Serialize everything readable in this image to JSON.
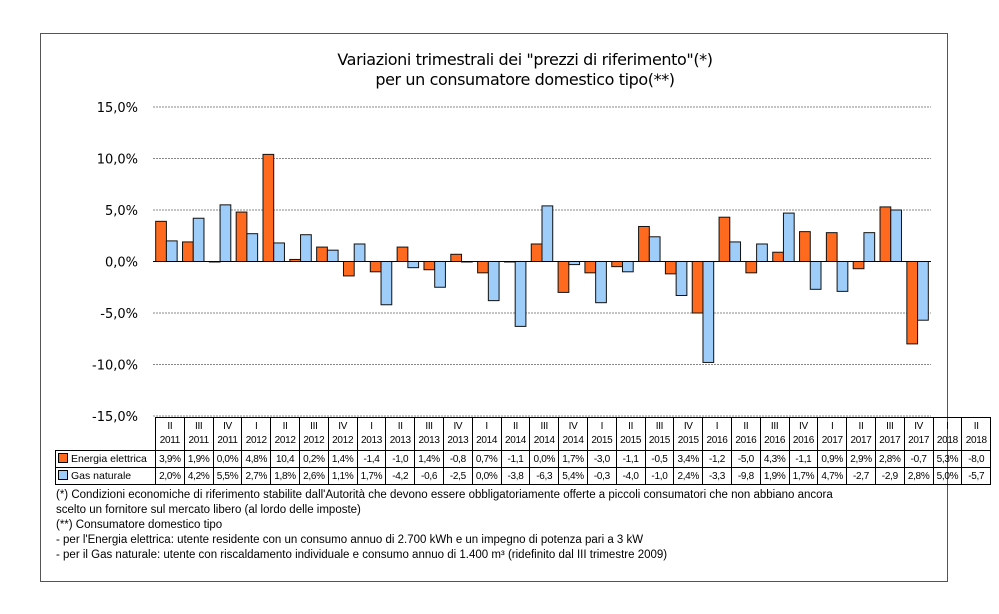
{
  "chart_data": {
    "type": "bar",
    "title": [
      "Variazioni trimestrali dei \"prezzi di riferimento\"(*)",
      "per un consumatore domestico tipo(**)"
    ],
    "ylim": [
      -15,
      15
    ],
    "yticks": [
      15,
      10,
      5,
      0,
      -5,
      -10,
      -15
    ],
    "ytick_labels": [
      "15,0%",
      "10,0%",
      "5,0%",
      "0,0%",
      "-5,0%",
      "-10,0%",
      "-15,0%"
    ],
    "grid": true,
    "categories": [
      {
        "q": "II",
        "y": "2011"
      },
      {
        "q": "III",
        "y": "2011"
      },
      {
        "q": "IV",
        "y": "2011"
      },
      {
        "q": "I",
        "y": "2012"
      },
      {
        "q": "II",
        "y": "2012"
      },
      {
        "q": "III",
        "y": "2012"
      },
      {
        "q": "IV",
        "y": "2012"
      },
      {
        "q": "I",
        "y": "2013"
      },
      {
        "q": "II",
        "y": "2013"
      },
      {
        "q": "III",
        "y": "2013"
      },
      {
        "q": "IV",
        "y": "2013"
      },
      {
        "q": "I",
        "y": "2014"
      },
      {
        "q": "II",
        "y": "2014"
      },
      {
        "q": "III",
        "y": "2014"
      },
      {
        "q": "IV",
        "y": "2014"
      },
      {
        "q": "I",
        "y": "2015"
      },
      {
        "q": "II",
        "y": "2015"
      },
      {
        "q": "III",
        "y": "2015"
      },
      {
        "q": "IV",
        "y": "2015"
      },
      {
        "q": "I",
        "y": "2016"
      },
      {
        "q": "II",
        "y": "2016"
      },
      {
        "q": "III",
        "y": "2016"
      },
      {
        "q": "IV",
        "y": "2016"
      },
      {
        "q": "I",
        "y": "2017"
      },
      {
        "q": "II",
        "y": "2017"
      },
      {
        "q": "III",
        "y": "2017"
      },
      {
        "q": "IV",
        "y": "2017"
      },
      {
        "q": "I",
        "y": "2018"
      },
      {
        "q": "II",
        "y": "2018"
      }
    ],
    "series": [
      {
        "name": "Energia elettrica",
        "color": "#ff6a1f",
        "values": [
          3.9,
          1.9,
          0.0,
          4.8,
          10.4,
          0.2,
          1.4,
          -1.4,
          -1.0,
          1.4,
          -0.8,
          0.7,
          -1.1,
          0.0,
          1.7,
          -3.0,
          -1.1,
          -0.5,
          3.4,
          -1.2,
          -5.0,
          4.3,
          -1.1,
          0.9,
          2.9,
          2.8,
          -0.7,
          5.3,
          -8.0
        ],
        "labels": [
          "3,9%",
          "1,9%",
          "0,0%",
          "4,8%",
          "10,4",
          "0,2%",
          "1,4%",
          "-1,4",
          "-1,0",
          "1,4%",
          "-0,8",
          "0,7%",
          "-1,1",
          "0,0%",
          "1,7%",
          "-3,0",
          "-1,1",
          "-0,5",
          "3,4%",
          "-1,2",
          "-5,0",
          "4,3%",
          "-1,1",
          "0,9%",
          "2,9%",
          "2,8%",
          "-0,7",
          "5,3%",
          "-8,0"
        ]
      },
      {
        "name": "Gas naturale",
        "color": "#9fcdfa",
        "values": [
          2.0,
          4.2,
          5.5,
          2.7,
          1.8,
          2.6,
          1.1,
          1.7,
          -4.2,
          -0.6,
          -2.5,
          0.0,
          -3.8,
          -6.3,
          5.4,
          -0.3,
          -4.0,
          -1.0,
          2.4,
          -3.3,
          -9.8,
          1.9,
          1.7,
          4.7,
          -2.7,
          -2.9,
          2.8,
          5.0,
          -5.7
        ],
        "labels": [
          "2,0%",
          "4,2%",
          "5,5%",
          "2,7%",
          "1,8%",
          "2,6%",
          "1,1%",
          "1,7%",
          "-4,2",
          "-0,6",
          "-2,5",
          "0,0%",
          "-3,8",
          "-6,3",
          "5,4%",
          "-0,3",
          "-4,0",
          "-1,0",
          "2,4%",
          "-3,3",
          "-9,8",
          "1,9%",
          "1,7%",
          "4,7%",
          "-2,7",
          "-2,9",
          "2,8%",
          "5,0%",
          "-5,7"
        ]
      }
    ]
  },
  "notes": [
    "(*) Condizioni economiche di riferimento stabilite dall'Autorità che devono essere obbligatoriamente offerte a piccoli consumatori che non abbiano ancora",
    "scelto un fornitore sul mercato libero (al lordo delle imposte)",
    "(**) Consumatore domestico tipo",
    "- per l'Energia elettrica: utente residente con un consumo annuo di 2.700 kWh e un impegno di potenza pari a 3 kW",
    "- per il Gas naturale: utente con riscaldamento individuale e consumo annuo di 1.400 m³ (ridefinito dal III trimestre 2009)"
  ]
}
